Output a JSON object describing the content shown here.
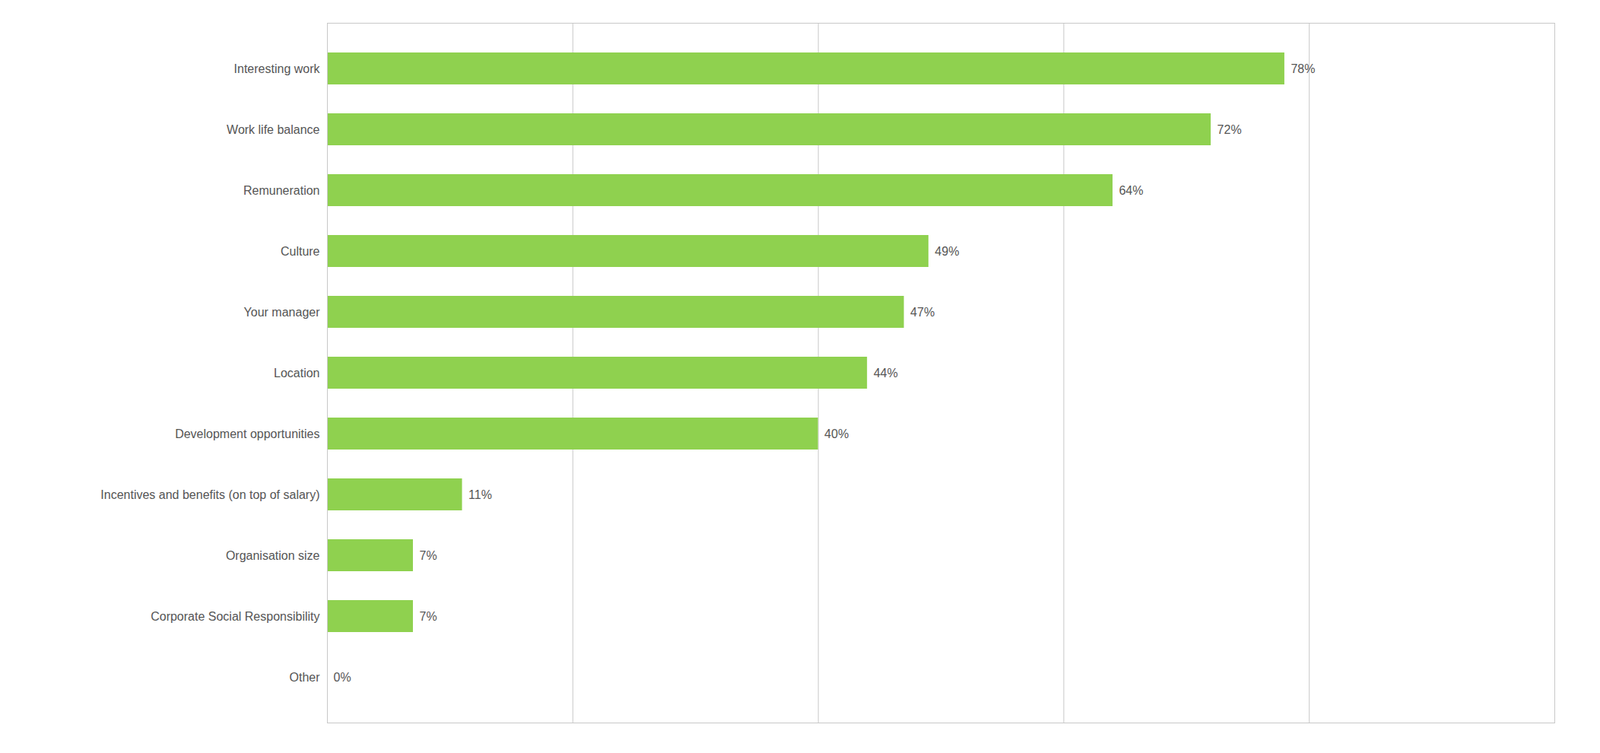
{
  "chart_data": {
    "type": "bar",
    "orientation": "horizontal",
    "categories": [
      "Other",
      "Corporate Social Responsibility",
      "Organisation size",
      "Incentives and benefits (on top of salary)",
      "Development opportunities",
      "Location",
      "Your manager",
      "Culture",
      "Remuneration",
      "Work life balance",
      "Interesting work"
    ],
    "values": [
      0,
      7,
      7,
      11,
      40,
      44,
      47,
      49,
      64,
      72,
      78
    ],
    "value_labels": [
      "0%",
      "7%",
      "7%",
      "11%",
      "40%",
      "44%",
      "47%",
      "49%",
      "64%",
      "72%",
      "78%"
    ],
    "color": "#8fd14f",
    "xlim": [
      0,
      100
    ],
    "xticks": [
      20,
      40,
      60,
      80,
      100
    ],
    "grid": true,
    "data_labels": true,
    "tick_labels": "y"
  }
}
